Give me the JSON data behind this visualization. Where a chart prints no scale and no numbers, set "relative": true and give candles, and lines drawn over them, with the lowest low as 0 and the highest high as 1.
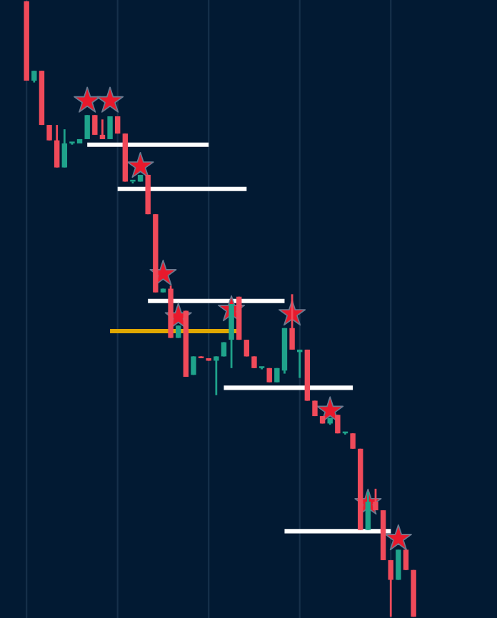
{
  "chart_data": {
    "type": "candlestick",
    "relative": true,
    "grid": true,
    "categories": [
      null,
      null,
      null,
      null,
      null,
      null,
      null,
      null,
      null,
      null,
      null,
      null,
      null,
      null,
      null,
      null,
      null,
      null,
      null,
      null,
      null,
      null,
      null,
      null,
      null,
      null,
      null,
      null,
      null,
      null,
      null,
      null,
      null,
      null,
      null,
      null,
      null,
      null,
      null,
      null,
      null,
      null,
      null,
      null,
      null,
      null,
      null,
      null,
      null,
      null,
      null,
      null
    ],
    "ohlc": [
      [
        1.0,
        1.0,
        0.871,
        0.871
      ],
      [
        0.871,
        0.887,
        0.868,
        0.887
      ],
      [
        0.887,
        0.887,
        0.799,
        0.799
      ],
      [
        0.799,
        0.799,
        0.774,
        0.774
      ],
      [
        0.774,
        0.799,
        0.73,
        0.73
      ],
      [
        0.73,
        0.792,
        0.73,
        0.769
      ],
      [
        0.769,
        0.771,
        0.767,
        0.771
      ],
      [
        0.769,
        0.776,
        0.769,
        0.776
      ],
      [
        0.776,
        0.815,
        0.776,
        0.815
      ],
      [
        0.815,
        0.815,
        0.783,
        0.783
      ],
      [
        0.783,
        0.808,
        0.776,
        0.776
      ],
      [
        0.776,
        0.813,
        0.776,
        0.813
      ],
      [
        0.813,
        0.813,
        0.785,
        0.785
      ],
      [
        0.785,
        0.785,
        0.707,
        0.707
      ],
      [
        0.707,
        0.707,
        0.704,
        0.707
      ],
      [
        0.707,
        0.718,
        0.707,
        0.718
      ],
      [
        0.718,
        0.718,
        0.654,
        0.654
      ],
      [
        0.654,
        0.654,
        0.527,
        0.527
      ],
      [
        0.527,
        0.533,
        0.527,
        0.533
      ],
      [
        0.533,
        0.538,
        0.453,
        0.453
      ],
      [
        0.453,
        0.473,
        0.453,
        0.473
      ],
      [
        0.497,
        0.497,
        0.39,
        0.39
      ],
      [
        0.393,
        0.423,
        0.393,
        0.423
      ],
      [
        0.423,
        0.423,
        0.42,
        0.42
      ],
      [
        0.42,
        0.42,
        0.416,
        0.416
      ],
      [
        0.416,
        0.423,
        0.36,
        0.423
      ],
      [
        0.423,
        0.446,
        0.423,
        0.446
      ],
      [
        0.45,
        0.508,
        0.404,
        0.508
      ],
      [
        0.52,
        0.52,
        0.45,
        0.45
      ],
      [
        0.45,
        0.45,
        0.423,
        0.423
      ],
      [
        0.423,
        0.423,
        0.404,
        0.404
      ],
      [
        0.404,
        0.406,
        0.402,
        0.404
      ],
      [
        0.404,
        0.404,
        0.381,
        0.381
      ],
      [
        0.381,
        0.404,
        0.381,
        0.404
      ],
      [
        0.4,
        0.469,
        0.395,
        0.469
      ],
      [
        0.469,
        0.524,
        0.434,
        0.434
      ],
      [
        0.43,
        0.434,
        0.388,
        0.434
      ],
      [
        0.434,
        0.434,
        0.351,
        0.351
      ],
      [
        0.351,
        0.351,
        0.326,
        0.326
      ],
      [
        0.326,
        0.326,
        0.314,
        0.314
      ],
      [
        0.314,
        0.323,
        0.312,
        0.323
      ],
      [
        0.328,
        0.328,
        0.298,
        0.298
      ],
      [
        0.298,
        0.3,
        0.296,
        0.298
      ],
      [
        0.298,
        0.298,
        0.273,
        0.273
      ],
      [
        0.273,
        0.273,
        0.141,
        0.141
      ],
      [
        0.141,
        0.203,
        0.141,
        0.187
      ],
      [
        0.187,
        0.208,
        0.173,
        0.173
      ],
      [
        0.173,
        0.173,
        0.092,
        0.092
      ],
      [
        0.092,
        0.092,
        0.0,
        0.06
      ],
      [
        0.06,
        0.109,
        0.06,
        0.109
      ],
      [
        0.109,
        0.109,
        0.076,
        0.076
      ],
      [
        0.076,
        0.076,
        0.0,
        0.0
      ]
    ],
    "series": [
      {
        "type": "scatter",
        "marker": "star",
        "color": "#e8192c",
        "values": [
          null,
          null,
          null,
          null,
          null,
          null,
          null,
          null,
          0.838,
          null,
          null,
          0.838,
          null,
          null,
          null,
          0.732,
          null,
          null,
          0.557,
          null,
          0.487,
          null,
          null,
          null,
          null,
          null,
          null,
          0.499,
          null,
          null,
          null,
          null,
          null,
          null,
          null,
          0.492,
          null,
          null,
          null,
          null,
          0.335,
          null,
          null,
          null,
          null,
          0.185,
          null,
          null,
          null,
          0.127,
          null,
          null
        ]
      },
      {
        "type": "line",
        "color": "#ffffff",
        "values": [
          null,
          null,
          null,
          null,
          null,
          null,
          null,
          null,
          0.767,
          0.767,
          0.767,
          0.767,
          0.767,
          0.767,
          0.767,
          0.767,
          0.767,
          0.767,
          0.767,
          0.767,
          0.767,
          0.767,
          0.767,
          0.767,
          0.767,
          null,
          null,
          null,
          null,
          null,
          null,
          null,
          null,
          null,
          null,
          null,
          null,
          null,
          null,
          null,
          null,
          null,
          null,
          null,
          null,
          null,
          null,
          null,
          null,
          null,
          null,
          null
        ]
      },
      {
        "type": "line",
        "color": "#ffffff",
        "values": [
          null,
          null,
          null,
          null,
          null,
          null,
          null,
          null,
          null,
          null,
          null,
          null,
          0.695,
          0.695,
          0.695,
          0.695,
          0.695,
          0.695,
          0.695,
          0.695,
          0.695,
          0.695,
          0.695,
          0.695,
          0.695,
          0.695,
          0.695,
          0.695,
          0.695,
          0.695,
          null,
          null,
          null,
          null,
          null,
          null,
          null,
          null,
          null,
          null,
          null,
          null,
          null,
          null,
          null,
          null,
          null,
          null,
          null,
          null,
          null,
          null
        ]
      },
      {
        "type": "line",
        "color": "#ffffff",
        "values": [
          null,
          null,
          null,
          null,
          null,
          null,
          null,
          null,
          null,
          null,
          null,
          null,
          null,
          null,
          null,
          null,
          0.513,
          0.513,
          0.513,
          0.513,
          0.513,
          0.513,
          0.513,
          0.513,
          0.513,
          0.513,
          0.513,
          0.513,
          0.513,
          0.513,
          0.513,
          0.513,
          0.513,
          0.513,
          0.513,
          null,
          null,
          null,
          null,
          null,
          null,
          null,
          null,
          null,
          null,
          null,
          null,
          null,
          null,
          null,
          null,
          null
        ]
      },
      {
        "type": "line",
        "color": "#ffffff",
        "values": [
          null,
          null,
          null,
          null,
          null,
          null,
          null,
          null,
          null,
          null,
          null,
          null,
          null,
          null,
          null,
          null,
          null,
          null,
          null,
          null,
          null,
          null,
          null,
          null,
          null,
          null,
          0.372,
          0.372,
          0.372,
          0.372,
          0.372,
          0.372,
          0.372,
          0.372,
          0.372,
          0.372,
          0.372,
          0.372,
          0.372,
          0.372,
          0.372,
          0.372,
          0.372,
          0.372,
          null,
          null,
          null,
          null,
          null,
          null,
          null,
          null
        ]
      },
      {
        "type": "line",
        "color": "#ffffff",
        "values": [
          null,
          null,
          null,
          null,
          null,
          null,
          null,
          null,
          null,
          null,
          null,
          null,
          null,
          null,
          null,
          null,
          null,
          null,
          null,
          null,
          null,
          null,
          null,
          null,
          null,
          null,
          null,
          null,
          null,
          null,
          null,
          null,
          null,
          null,
          0.139,
          0.139,
          0.139,
          0.139,
          0.139,
          0.139,
          0.139,
          0.139,
          0.139,
          0.139,
          0.139,
          0.139,
          0.139,
          0.139,
          0.139,
          null,
          null,
          null
        ]
      },
      {
        "type": "line",
        "color": "#e0a800",
        "values": [
          null,
          null,
          null,
          null,
          null,
          null,
          null,
          null,
          null,
          null,
          null,
          0.464,
          0.464,
          0.464,
          0.464,
          0.464,
          0.464,
          0.464,
          0.464,
          0.464,
          0.464,
          0.464,
          0.464,
          0.464,
          0.464,
          0.464,
          0.464,
          0.464,
          0.464,
          null,
          null,
          null,
          null,
          null,
          null,
          null,
          null,
          null,
          null,
          null,
          null,
          null,
          null,
          null,
          null,
          null,
          null,
          null,
          null,
          null,
          null,
          null
        ]
      }
    ]
  }
}
